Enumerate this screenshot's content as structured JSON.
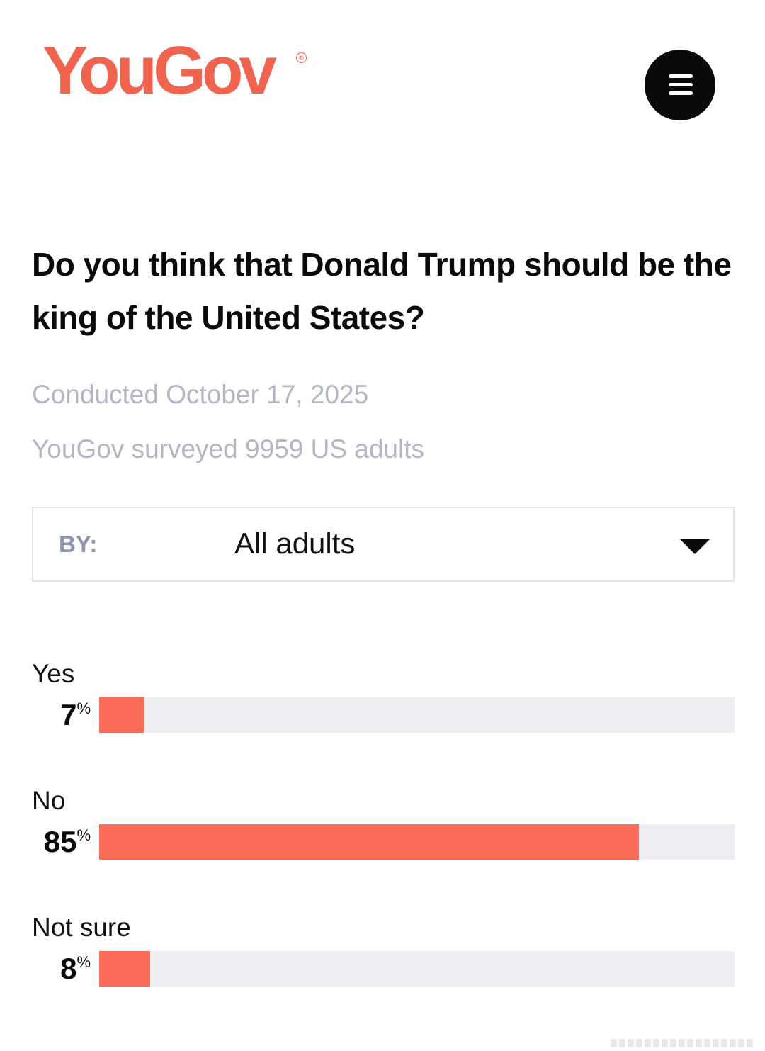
{
  "header": {
    "logo_text": "YouGov",
    "logo_mark": "®",
    "brand_color": "#f0634f",
    "menu_icon": "hamburger-menu-icon"
  },
  "question": "Do you think that Donald Trump should be the king of the United States?",
  "meta": {
    "date_text": "Conducted October 17, 2025",
    "sample_text": "YouGov surveyed 9959 US adults"
  },
  "filter": {
    "label": "BY:",
    "value": "All adults",
    "icon": "caret-down-icon"
  },
  "chart_data": {
    "type": "bar",
    "orientation": "horizontal",
    "categories": [
      "Yes",
      "No",
      "Not sure"
    ],
    "values": [
      7,
      85,
      8
    ],
    "value_suffix": "%",
    "ylim": [
      0,
      100
    ],
    "bar_color": "#fc6a58",
    "track_color": "#ededf1"
  }
}
